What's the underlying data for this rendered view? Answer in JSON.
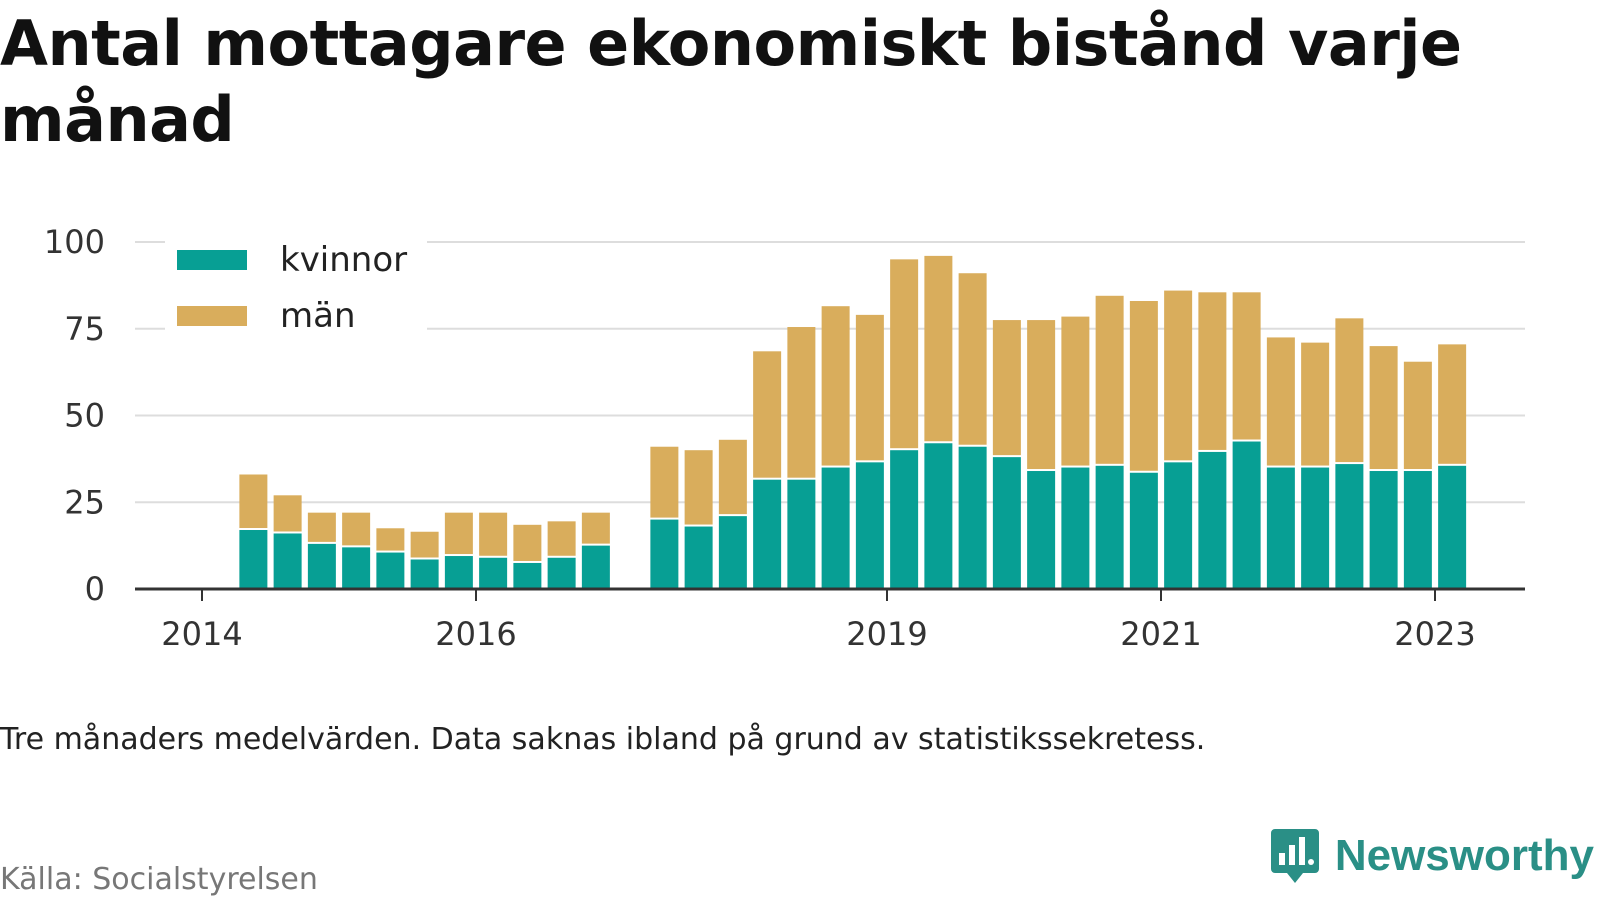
{
  "title": "Antal mottagare ekonomiskt bistånd varje månad",
  "note": "Tre månaders medelvärden. Data saknas ibland på grund av statistikssekretess.",
  "source": "Källa: Socialstyrelsen",
  "brand": {
    "name": "Newsworthy",
    "icon": "newsworthy-logo-icon"
  },
  "colors": {
    "kvinnor": "#079f94",
    "man": "#d9ad5c",
    "grid": "#dddddd",
    "axis": "#333333"
  },
  "chart_data": {
    "type": "bar",
    "stacked": true,
    "title": "Antal mottagare ekonomiskt bistånd varje månad",
    "xlabel": "",
    "ylabel": "",
    "ylim": [
      0,
      100
    ],
    "yticks": [
      0,
      25,
      50,
      75,
      100
    ],
    "xtick_labels": [
      "2014",
      "2016",
      "2019",
      "2021",
      "2023"
    ],
    "legend_position": "top-left",
    "grid": true,
    "bars_per_year": 4,
    "first_bar_year_offset": 1,
    "slots": [
      {
        "label": "2014",
        "kvinnor": null,
        "man": null
      },
      {
        "label": "",
        "kvinnor": 17,
        "man": 16
      },
      {
        "label": "",
        "kvinnor": 16,
        "man": 11
      },
      {
        "label": "",
        "kvinnor": 13,
        "man": 9
      },
      {
        "label": "",
        "kvinnor": 12,
        "man": 10
      },
      {
        "label": "",
        "kvinnor": 10.5,
        "man": 7
      },
      {
        "label": "",
        "kvinnor": 8.5,
        "man": 8
      },
      {
        "label": "",
        "kvinnor": 9.5,
        "man": 12.5
      },
      {
        "label": "2016",
        "kvinnor": 9,
        "man": 13
      },
      {
        "label": "",
        "kvinnor": 7.5,
        "man": 11
      },
      {
        "label": "",
        "kvinnor": 9,
        "man": 10.5
      },
      {
        "label": "",
        "kvinnor": 12.5,
        "man": 9.5
      },
      {
        "label": "",
        "kvinnor": null,
        "man": null
      },
      {
        "label": "",
        "kvinnor": 20,
        "man": 21
      },
      {
        "label": "",
        "kvinnor": 18,
        "man": 22
      },
      {
        "label": "",
        "kvinnor": 21,
        "man": 22
      },
      {
        "label": "",
        "kvinnor": 31.5,
        "man": 37
      },
      {
        "label": "",
        "kvinnor": 31.5,
        "man": 44
      },
      {
        "label": "",
        "kvinnor": 35,
        "man": 46.5
      },
      {
        "label": "",
        "kvinnor": 36.5,
        "man": 42.5
      },
      {
        "label": "2019",
        "kvinnor": 40,
        "man": 55
      },
      {
        "label": "",
        "kvinnor": 42,
        "man": 54
      },
      {
        "label": "",
        "kvinnor": 41,
        "man": 50
      },
      {
        "label": "",
        "kvinnor": 38,
        "man": 39.5
      },
      {
        "label": "",
        "kvinnor": 34,
        "man": 43.5
      },
      {
        "label": "",
        "kvinnor": 35,
        "man": 43.5
      },
      {
        "label": "",
        "kvinnor": 35.5,
        "man": 49
      },
      {
        "label": "",
        "kvinnor": 33.5,
        "man": 49.5
      },
      {
        "label": "2021",
        "kvinnor": 36.5,
        "man": 49.5
      },
      {
        "label": "",
        "kvinnor": 39.5,
        "man": 46
      },
      {
        "label": "",
        "kvinnor": 42.5,
        "man": 43
      },
      {
        "label": "",
        "kvinnor": 35,
        "man": 37.5
      },
      {
        "label": "",
        "kvinnor": 35,
        "man": 36
      },
      {
        "label": "",
        "kvinnor": 36,
        "man": 42
      },
      {
        "label": "",
        "kvinnor": 34,
        "man": 36
      },
      {
        "label": "",
        "kvinnor": 34,
        "man": 31.5
      },
      {
        "label": "2023",
        "kvinnor": 35.5,
        "man": 35
      }
    ],
    "series": [
      {
        "name": "kvinnor",
        "key": "kvinnor"
      },
      {
        "name": "män",
        "key": "man"
      }
    ]
  }
}
